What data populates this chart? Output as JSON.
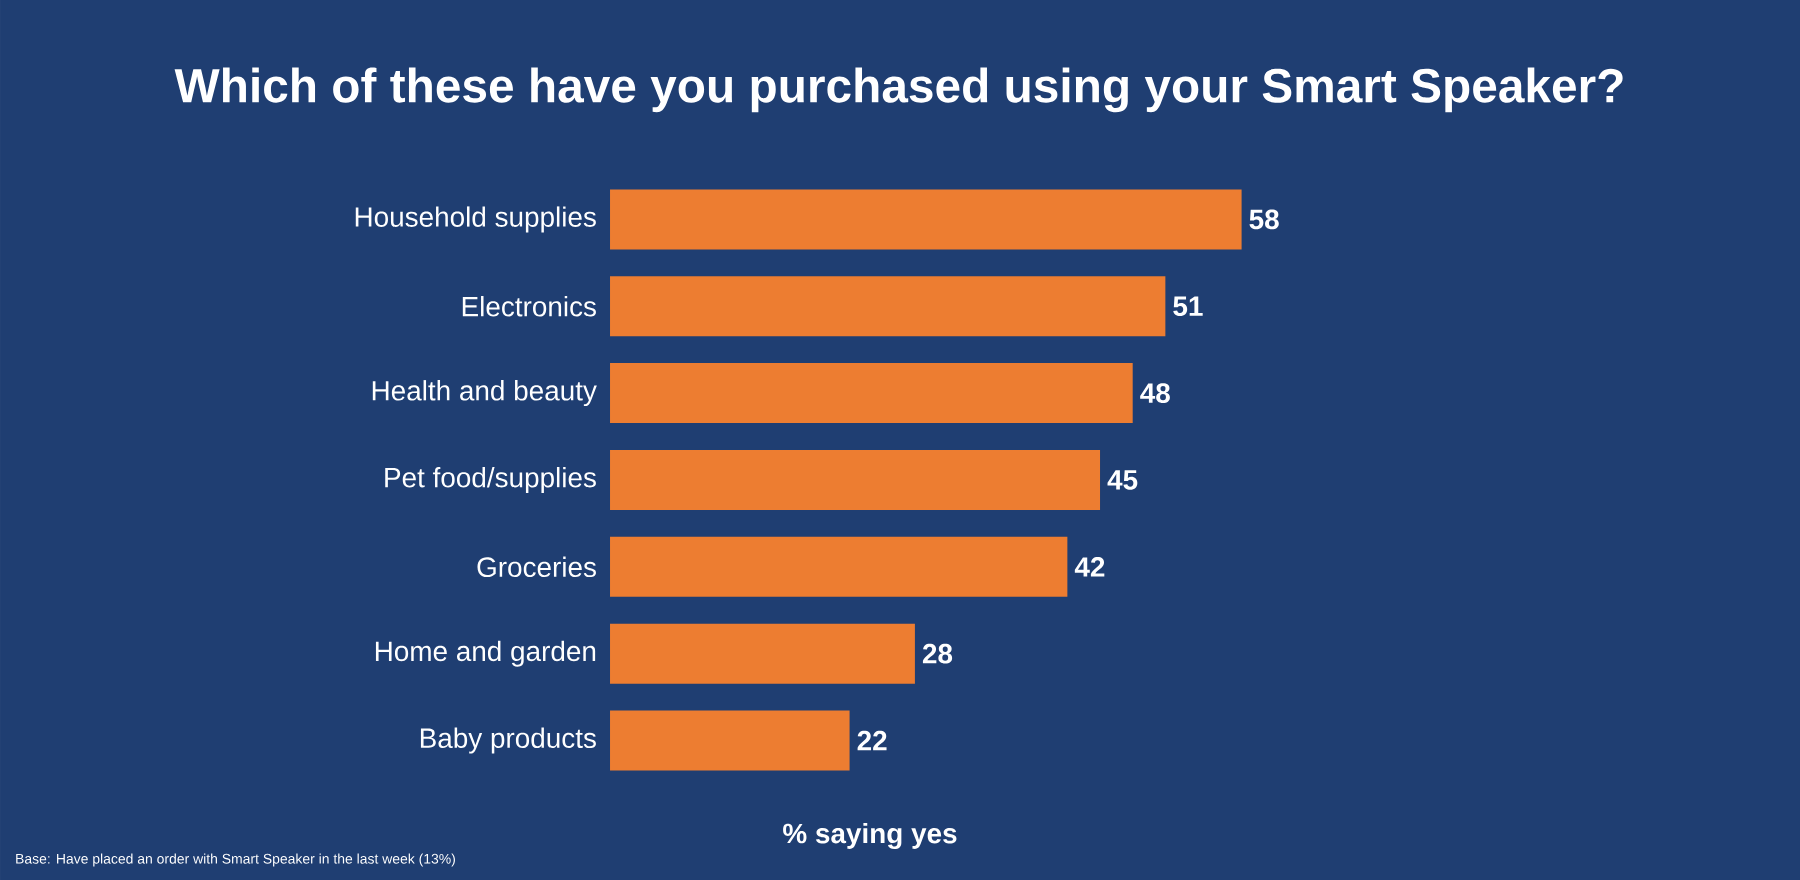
{
  "chart_data": {
    "type": "bar",
    "orientation": "horizontal",
    "title": "Which of these have you purchased using your Smart Speaker?",
    "xlabel": "% saying yes",
    "categories": [
      "Household supplies",
      "Electronics",
      "Health and beauty",
      "Pet food/supplies",
      "Groceries",
      "Home and garden",
      "Baby products"
    ],
    "values": [
      58,
      51,
      48,
      45,
      42,
      28,
      22
    ],
    "color": "#ed7d31",
    "data_labels": true,
    "annotations": [
      "Base: Have placed an order with Smart Speaker in the last week (13%)"
    ]
  }
}
